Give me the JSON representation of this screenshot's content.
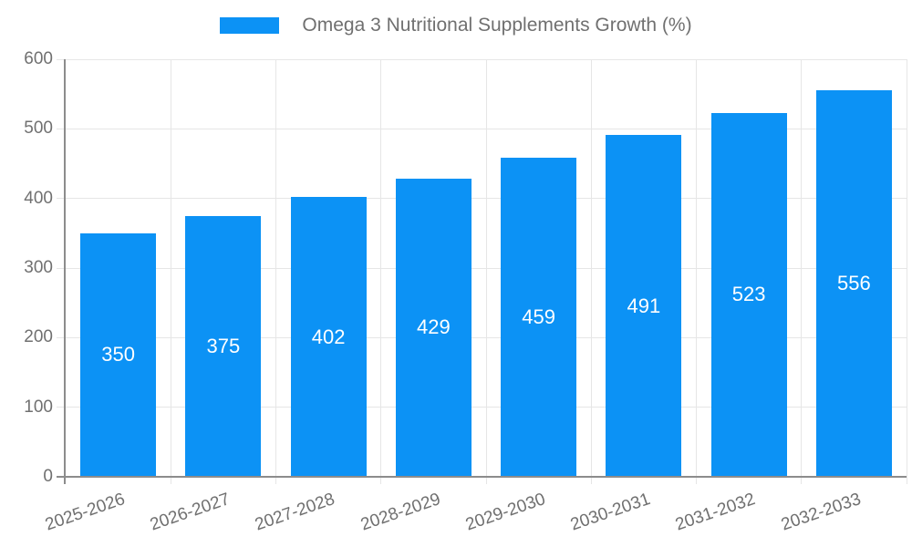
{
  "chart_data": {
    "type": "bar",
    "legend_label": "Omega 3 Nutritional Supplements Growth (%)",
    "legend_position": "top-center",
    "categories": [
      "2025-2026",
      "2026-2027",
      "2027-2028",
      "2028-2029",
      "2029-2030",
      "2030-2031",
      "2031-2032",
      "2032-2033"
    ],
    "values": [
      350,
      375,
      402,
      429,
      459,
      491,
      523,
      556
    ],
    "value_labels_inside_bars": true,
    "ylim": [
      0,
      600
    ],
    "yticks": [
      0,
      100,
      200,
      300,
      400,
      500,
      600
    ],
    "grid": "horizontal-and-vertical",
    "x_label_rotation_deg": -19,
    "colors": {
      "bar": "#0C92F5",
      "value_label": "#FFFFFF",
      "axis_text": "#707070",
      "grid_line": "#E6E6E6",
      "axis_line": "#8C8C8C",
      "background": "#FFFFFF"
    }
  }
}
